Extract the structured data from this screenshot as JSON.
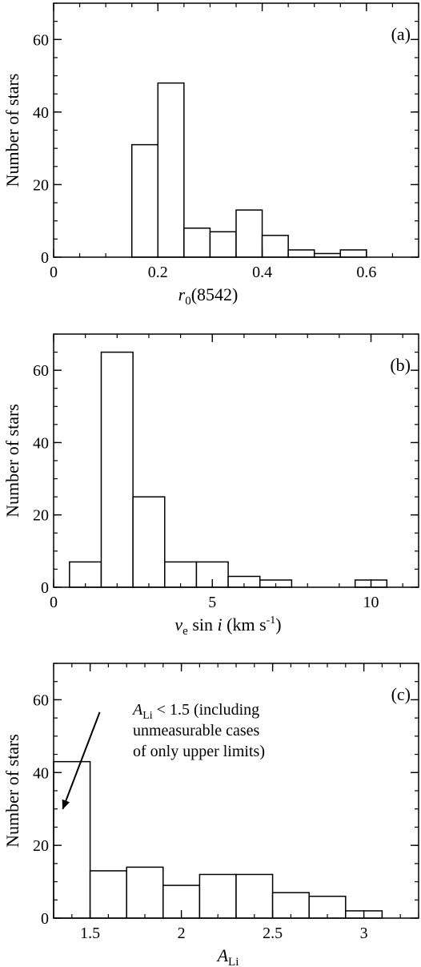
{
  "chart_data": [
    {
      "type": "bar",
      "panel_label": "(a)",
      "xlabel": {
        "main": "r",
        "sub": "0",
        "rest": "(8542)"
      },
      "ylabel": "Number of stars",
      "xlim": [
        0,
        0.7
      ],
      "ylim": [
        0,
        70
      ],
      "xticks": [
        0,
        0.2,
        0.4,
        0.6
      ],
      "xtick_labels": [
        "0",
        "0.2",
        "0.4",
        "0.6"
      ],
      "xminor": 0.05,
      "yticks": [
        0,
        20,
        40,
        60
      ],
      "ytick_labels": [
        "0",
        "20",
        "40",
        "60"
      ],
      "yminor": 5,
      "grid": false,
      "bins": [
        {
          "x0": 0.15,
          "x1": 0.2,
          "value": 31
        },
        {
          "x0": 0.2,
          "x1": 0.25,
          "value": 48
        },
        {
          "x0": 0.25,
          "x1": 0.3,
          "value": 8
        },
        {
          "x0": 0.3,
          "x1": 0.35,
          "value": 7
        },
        {
          "x0": 0.35,
          "x1": 0.4,
          "value": 13
        },
        {
          "x0": 0.4,
          "x1": 0.45,
          "value": 6
        },
        {
          "x0": 0.45,
          "x1": 0.5,
          "value": 2
        },
        {
          "x0": 0.5,
          "x1": 0.55,
          "value": 1
        },
        {
          "x0": 0.55,
          "x1": 0.6,
          "value": 2
        }
      ]
    },
    {
      "type": "bar",
      "panel_label": "(b)",
      "xlabel": {
        "v": "v",
        "vsub": "e",
        "sin": " sin ",
        "i": "i",
        "units": " (km s",
        "exp": "-1",
        "close": ")"
      },
      "ylabel": "Number of stars",
      "xlim": [
        0,
        11.5
      ],
      "ylim": [
        0,
        70
      ],
      "xticks": [
        0,
        5,
        10
      ],
      "xtick_labels": [
        "0",
        "5",
        "10"
      ],
      "xminor": 1,
      "yticks": [
        0,
        20,
        40,
        60
      ],
      "ytick_labels": [
        "0",
        "20",
        "40",
        "60"
      ],
      "yminor": 5,
      "grid": false,
      "bins": [
        {
          "x0": 0.5,
          "x1": 1.5,
          "value": 7
        },
        {
          "x0": 1.5,
          "x1": 2.5,
          "value": 65
        },
        {
          "x0": 2.5,
          "x1": 3.5,
          "value": 25
        },
        {
          "x0": 3.5,
          "x1": 4.5,
          "value": 7
        },
        {
          "x0": 4.5,
          "x1": 5.5,
          "value": 7
        },
        {
          "x0": 5.5,
          "x1": 6.5,
          "value": 3
        },
        {
          "x0": 6.5,
          "x1": 7.5,
          "value": 2
        },
        {
          "x0": 9.5,
          "x1": 10.5,
          "value": 2
        }
      ]
    },
    {
      "type": "bar",
      "panel_label": "(c)",
      "xlabel": {
        "main": "A",
        "sub": "Li"
      },
      "ylabel": "Number of stars",
      "xlim": [
        1.3,
        3.3
      ],
      "ylim": [
        0,
        70
      ],
      "xticks": [
        1.5,
        2,
        2.5,
        3
      ],
      "xtick_labels": [
        "1.5",
        "2",
        "2.5",
        "3"
      ],
      "xminor": 0.1,
      "yticks": [
        0,
        20,
        40,
        60
      ],
      "ytick_labels": [
        "0",
        "20",
        "40",
        "60"
      ],
      "yminor": 5,
      "grid": false,
      "bins": [
        {
          "x0": 1.3,
          "x1": 1.5,
          "value": 43
        },
        {
          "x0": 1.5,
          "x1": 1.7,
          "value": 13
        },
        {
          "x0": 1.7,
          "x1": 1.9,
          "value": 14
        },
        {
          "x0": 1.9,
          "x1": 2.1,
          "value": 9
        },
        {
          "x0": 2.1,
          "x1": 2.3,
          "value": 12
        },
        {
          "x0": 2.3,
          "x1": 2.5,
          "value": 12
        },
        {
          "x0": 2.5,
          "x1": 2.7,
          "value": 7
        },
        {
          "x0": 2.7,
          "x1": 2.9,
          "value": 6
        },
        {
          "x0": 2.9,
          "x1": 3.1,
          "value": 2
        }
      ],
      "annotation": {
        "line1_main": "A",
        "line1_sub": "Li",
        "line1_rest": " < 1.5 (including",
        "line2": "unmeasurable cases",
        "line3": "of only upper limits)",
        "arrow_from": [
          1.5,
          50
        ],
        "arrow_to": [
          1.35,
          30
        ]
      }
    }
  ]
}
